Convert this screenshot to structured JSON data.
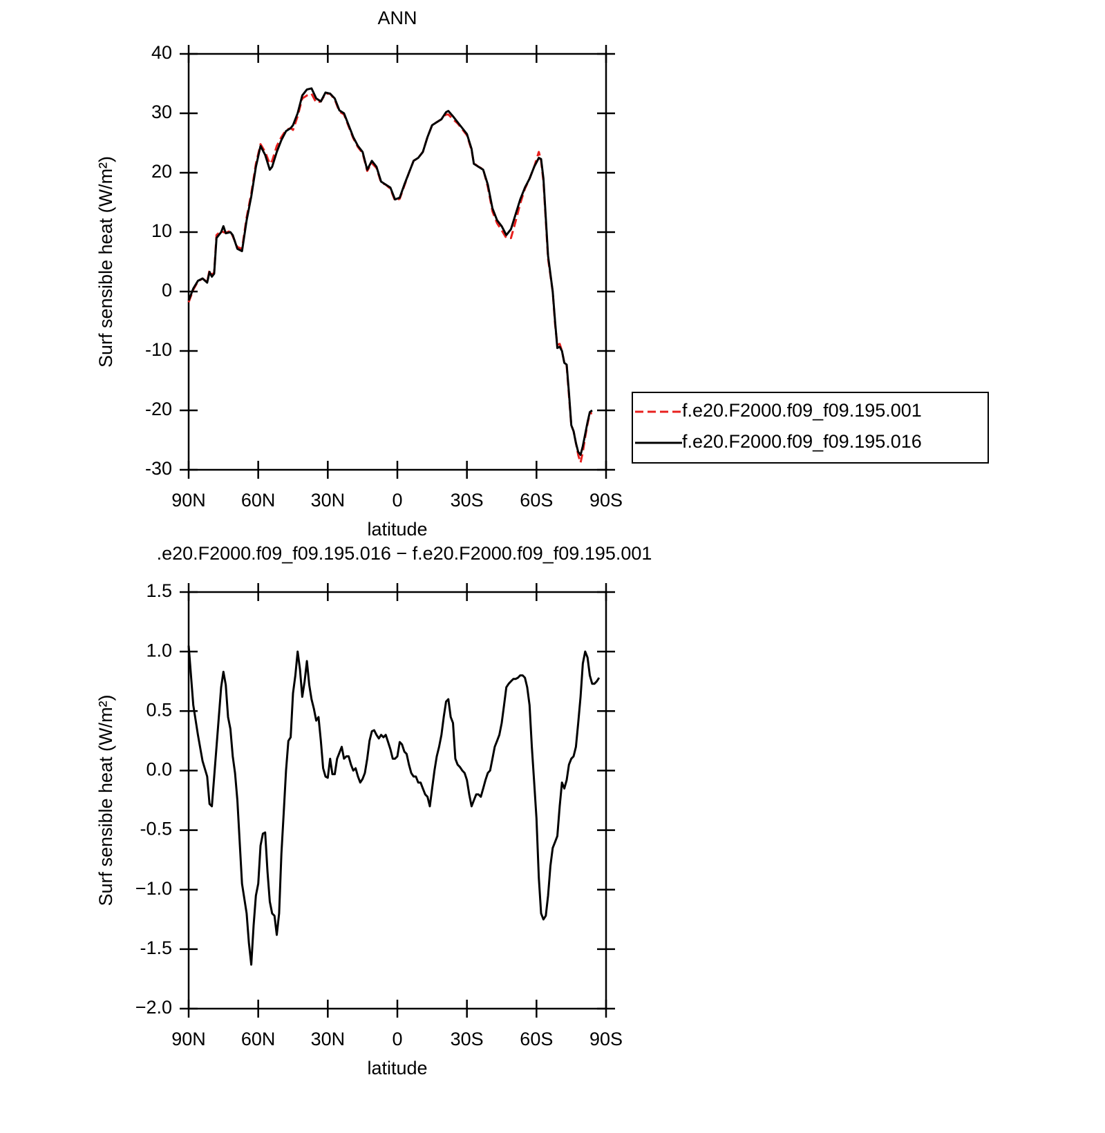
{
  "chart_data": [
    {
      "type": "line",
      "title": "ANN",
      "xlabel": "latitude",
      "ylabel": "Surf sensible heat (W/m²)",
      "xlim": [
        90,
        -90
      ],
      "ylim": [
        -30,
        40
      ],
      "xticks": [
        {
          "value": 90,
          "label": "90N"
        },
        {
          "value": 60,
          "label": "60N"
        },
        {
          "value": 30,
          "label": "30N"
        },
        0,
        {
          "value": -30,
          "label": "30S"
        },
        {
          "value": -60,
          "label": "60S"
        },
        {
          "value": -90,
          "label": "90S"
        }
      ],
      "yticks": [
        -30,
        -20,
        -10,
        0,
        10,
        20,
        30,
        40
      ],
      "legend": "right",
      "x": [
        90,
        88,
        86,
        84,
        82,
        81,
        80,
        79,
        78,
        76,
        75,
        74,
        72,
        71,
        69,
        67,
        65,
        63,
        61,
        59,
        57,
        55,
        54,
        52,
        50,
        48,
        46,
        45,
        43,
        41,
        39,
        37,
        35,
        33,
        31,
        29,
        27,
        25,
        23,
        21,
        19,
        17,
        15,
        13,
        11,
        9,
        7,
        5,
        3,
        1,
        -1,
        -3,
        -5,
        -7,
        -9,
        -11,
        -13,
        -15,
        -17,
        -19,
        -21,
        -22,
        -24,
        -26,
        -28,
        -30,
        -32,
        -33,
        -35,
        -37,
        -39,
        -41,
        -43,
        -45,
        -47,
        -49,
        -51,
        -53,
        -55,
        -57,
        -59,
        -61,
        -62,
        -63,
        -65,
        -67,
        -68,
        -69,
        -70,
        -71,
        -72,
        -73,
        -74,
        -75,
        -76,
        -77,
        -78,
        -79,
        -80,
        -81,
        -82,
        -83,
        -84
      ],
      "series": [
        {
          "name": "f.e20.F2000.f09_f09.195.001",
          "color": "#e8201e",
          "dash": "dashed",
          "values": [
            -1.8,
            0.3,
            1.7,
            2.2,
            1.6,
            3.6,
            2.8,
            3.2,
            9.5,
            10.2,
            10,
            9.9,
            10.2,
            9.3,
            7.5,
            7.2,
            12.5,
            16.5,
            21.5,
            24.8,
            23.5,
            21.5,
            22,
            24.5,
            26,
            27.2,
            27.5,
            27.2,
            29.5,
            32.5,
            33,
            33.3,
            31.8,
            32,
            33.3,
            33.3,
            32.3,
            30.3,
            29.8,
            27.8,
            25.8,
            24.3,
            23.3,
            20.3,
            21.6,
            20.8,
            18.3,
            18,
            17.3,
            15.3,
            15.6,
            17.8,
            20,
            22,
            22.5,
            23.5,
            26,
            28,
            28.5,
            29,
            29.8,
            29.8,
            29,
            28.3,
            27.3,
            26.3,
            23.8,
            21.6,
            21,
            20.6,
            17.6,
            13.5,
            11.5,
            10.3,
            9.0,
            9.0,
            11.8,
            14.8,
            17.3,
            19,
            21,
            23.5,
            22,
            18.5,
            5.5,
            0,
            -5.5,
            -9,
            -8.8,
            -10,
            -12,
            -12.5,
            -17.5,
            -22.5,
            -23.5,
            -25.5,
            -27.5,
            -28.8,
            -27,
            -24.5,
            -22.3,
            -20.5,
            -20.5
          ]
        },
        {
          "name": "f.e20.F2000.f09_f09.195.016",
          "color": "#000000",
          "dash": "solid",
          "values": [
            -1.5,
            0.5,
            1.8,
            2.2,
            1.5,
            3.3,
            2.5,
            3,
            9,
            10,
            11,
            9.8,
            10,
            9.5,
            7.2,
            6.8,
            12,
            16,
            21,
            24.5,
            23,
            20.5,
            21,
            23.5,
            25.5,
            27,
            27.5,
            28,
            30,
            33,
            34,
            34.2,
            32.5,
            32,
            33.5,
            33.3,
            32.5,
            30.5,
            30,
            28,
            26,
            24.5,
            23.5,
            20.5,
            22,
            21,
            18.5,
            18,
            17.5,
            15.5,
            15.8,
            18,
            20,
            22,
            22.5,
            23.5,
            26,
            28,
            28.5,
            29,
            30.2,
            30.4,
            29.5,
            28.5,
            27.5,
            26.5,
            24,
            21.5,
            21,
            20.5,
            18,
            14,
            12,
            11,
            9.5,
            10.5,
            13,
            15.5,
            17.5,
            19,
            21,
            22.5,
            22.3,
            19,
            6,
            0,
            -5,
            -9.5,
            -9.3,
            -10,
            -12,
            -12.3,
            -17,
            -22.5,
            -23.5,
            -25.5,
            -27,
            -27.5,
            -26,
            -24,
            -22,
            -20.3,
            -20
          ]
        }
      ]
    },
    {
      "type": "line",
      "title": ".e20.F2000.f09_f09.195.016 − f.e20.F2000.f09_f09.195.001",
      "xlabel": "latitude",
      "ylabel": "Surf sensible heat (W/m²)",
      "xlim": [
        90,
        -90
      ],
      "ylim": [
        -2,
        1.5
      ],
      "xticks": [
        {
          "value": 90,
          "label": "90N"
        },
        {
          "value": 60,
          "label": "60N"
        },
        {
          "value": 30,
          "label": "30N"
        },
        0,
        {
          "value": -30,
          "label": "30S"
        },
        {
          "value": -60,
          "label": "60S"
        },
        {
          "value": -90,
          "label": "90S"
        }
      ],
      "yticks": [
        {
          "value": -2,
          "label": "−2.0"
        },
        -1.5,
        {
          "value": -1,
          "label": "−1.0"
        },
        -0.5,
        {
          "value": 0,
          "label": "0.0"
        },
        0.5,
        {
          "value": 1,
          "label": "1.0"
        },
        1.5
      ],
      "x": [
        90,
        88,
        86,
        84,
        82,
        81,
        80,
        78,
        76,
        75,
        74,
        73,
        72,
        71,
        70,
        69,
        67,
        65,
        64,
        63,
        62,
        61,
        60,
        59,
        58,
        57,
        56,
        55,
        54,
        53,
        52,
        51,
        50,
        49,
        48,
        47,
        46,
        45,
        44,
        43,
        42,
        41,
        40,
        39,
        38,
        37,
        36,
        35,
        34,
        33,
        32,
        31,
        30,
        29,
        28,
        27,
        26,
        24,
        23,
        22,
        21,
        20,
        19,
        18,
        17,
        16,
        15,
        14,
        13,
        12,
        11,
        10,
        9,
        8,
        7,
        6,
        5,
        4,
        3,
        2,
        1,
        0,
        -1,
        -2,
        -3,
        -4,
        -5,
        -6,
        -7,
        -8,
        -9,
        -10,
        -11,
        -12,
        -13,
        -14,
        -15,
        -16,
        -17,
        -18,
        -19,
        -20,
        -21,
        -22,
        -23,
        -24,
        -25,
        -26,
        -27,
        -28,
        -29,
        -30,
        -31,
        -32,
        -33,
        -34,
        -35,
        -36,
        -37,
        -38,
        -39,
        -40,
        -41,
        -42,
        -43,
        -44,
        -45,
        -46,
        -47,
        -48,
        -49,
        -50,
        -51,
        -52,
        -53,
        -54,
        -55,
        -56,
        -57,
        -58,
        -59,
        -60,
        -61,
        -62,
        -63,
        -64,
        -65,
        -66,
        -67,
        -68,
        -69,
        -70,
        -71,
        -72,
        -73,
        -74,
        -75,
        -76,
        -77,
        -78,
        -79,
        -80,
        -81,
        -82,
        -83,
        -84,
        -85,
        -86,
        -87
      ],
      "series": [
        {
          "color": "#000000",
          "dash": "solid",
          "values": [
            1.05,
            0.55,
            0.3,
            0.08,
            -0.05,
            -0.28,
            -0.3,
            0.2,
            0.7,
            0.83,
            0.72,
            0.45,
            0.35,
            0.12,
            -0.02,
            -0.25,
            -0.95,
            -1.2,
            -1.45,
            -1.63,
            -1.3,
            -1.05,
            -0.95,
            -0.63,
            -0.53,
            -0.52,
            -0.85,
            -1.1,
            -1.2,
            -1.22,
            -1.38,
            -1.2,
            -0.7,
            -0.35,
            0,
            0.25,
            0.28,
            0.65,
            0.8,
            1.0,
            0.85,
            0.62,
            0.75,
            0.92,
            0.72,
            0.6,
            0.52,
            0.42,
            0.45,
            0.25,
            0.02,
            -0.05,
            -0.06,
            0.1,
            -0.03,
            -0.03,
            0.1,
            0.2,
            0.1,
            0.12,
            0.12,
            0.05,
            0,
            0.02,
            -0.05,
            -0.1,
            -0.07,
            -0.02,
            0.1,
            0.25,
            0.33,
            0.34,
            0.3,
            0.27,
            0.3,
            0.28,
            0.3,
            0.24,
            0.18,
            0.1,
            0.1,
            0.12,
            0.24,
            0.22,
            0.16,
            0.14,
            0.05,
            -0.02,
            -0.05,
            -0.05,
            -0.1,
            -0.1,
            -0.15,
            -0.2,
            -0.22,
            -0.3,
            -0.15,
            0,
            0.12,
            0.2,
            0.3,
            0.45,
            0.58,
            0.6,
            0.45,
            0.4,
            0.1,
            0.05,
            0.03,
            0,
            -0.02,
            -0.08,
            -0.2,
            -0.3,
            -0.25,
            -0.2,
            -0.2,
            -0.22,
            -0.15,
            -0.08,
            -0.02,
            0,
            0.1,
            0.2,
            0.25,
            0.3,
            0.4,
            0.55,
            0.7,
            0.73,
            0.75,
            0.77,
            0.77,
            0.78,
            0.8,
            0.8,
            0.78,
            0.7,
            0.55,
            0.2,
            -0.1,
            -0.4,
            -0.9,
            -1.2,
            -1.25,
            -1.22,
            -1.05,
            -0.8,
            -0.65,
            -0.6,
            -0.55,
            -0.3,
            -0.1,
            -0.15,
            -0.08,
            0.05,
            0.1,
            0.12,
            0.2,
            0.4,
            0.62,
            0.9,
            1.0,
            0.95,
            0.8,
            0.73,
            0.73,
            0.75,
            0.78
          ]
        }
      ]
    }
  ]
}
